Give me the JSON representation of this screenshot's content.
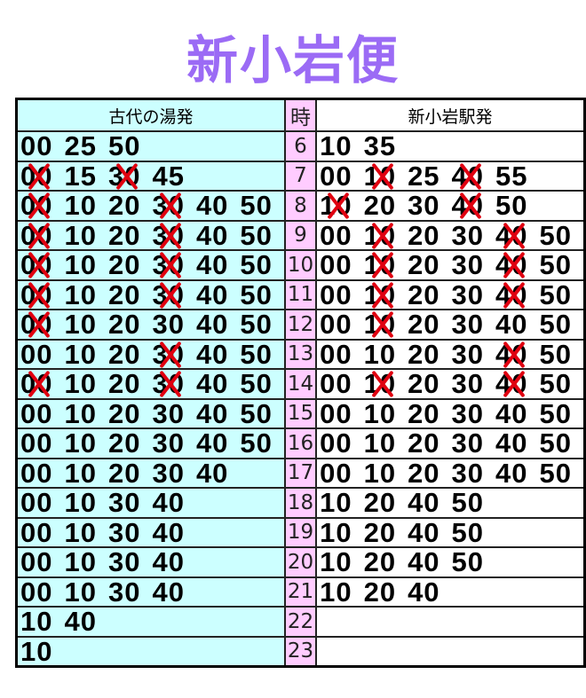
{
  "title": "新小岩便",
  "colors": {
    "title": "#9b6bf5",
    "left_bg": "#ccffff",
    "hour_bg": "#ffccff",
    "cancel_mark": "#e00010"
  },
  "headers": {
    "left": "古代の湯発",
    "hour": "時",
    "right": "新小岩駅発"
  },
  "rows": [
    {
      "hour": "6",
      "left": [
        {
          "t": "00"
        },
        {
          "t": "25"
        },
        {
          "t": "50"
        }
      ],
      "right": [
        {
          "t": "10"
        },
        {
          "t": "35"
        }
      ]
    },
    {
      "hour": "7",
      "left": [
        {
          "t": "00",
          "x": true
        },
        {
          "t": "15"
        },
        {
          "t": "30",
          "x": true
        },
        {
          "t": "45"
        }
      ],
      "right": [
        {
          "t": "00"
        },
        {
          "t": "10",
          "x": true
        },
        {
          "t": "25"
        },
        {
          "t": "40",
          "x": true
        },
        {
          "t": "55"
        }
      ]
    },
    {
      "hour": "8",
      "left": [
        {
          "t": "00",
          "x": true
        },
        {
          "t": "10"
        },
        {
          "t": "20"
        },
        {
          "t": "30",
          "x": true
        },
        {
          "t": "40"
        },
        {
          "t": "50"
        }
      ],
      "right": [
        {
          "t": "10",
          "x": true
        },
        {
          "t": "20"
        },
        {
          "t": "30"
        },
        {
          "t": "40",
          "x": true
        },
        {
          "t": "50"
        }
      ]
    },
    {
      "hour": "9",
      "left": [
        {
          "t": "00",
          "x": true
        },
        {
          "t": "10"
        },
        {
          "t": "20"
        },
        {
          "t": "30",
          "x": true
        },
        {
          "t": "40"
        },
        {
          "t": "50"
        }
      ],
      "right": [
        {
          "t": "00"
        },
        {
          "t": "10",
          "x": true
        },
        {
          "t": "20"
        },
        {
          "t": "30"
        },
        {
          "t": "40",
          "x": true
        },
        {
          "t": "50"
        }
      ]
    },
    {
      "hour": "10",
      "left": [
        {
          "t": "00",
          "x": true
        },
        {
          "t": "10"
        },
        {
          "t": "20"
        },
        {
          "t": "30",
          "x": true
        },
        {
          "t": "40"
        },
        {
          "t": "50"
        }
      ],
      "right": [
        {
          "t": "00"
        },
        {
          "t": "10",
          "x": true
        },
        {
          "t": "20"
        },
        {
          "t": "30"
        },
        {
          "t": "40",
          "x": true
        },
        {
          "t": "50"
        }
      ]
    },
    {
      "hour": "11",
      "left": [
        {
          "t": "00",
          "x": true
        },
        {
          "t": "10"
        },
        {
          "t": "20"
        },
        {
          "t": "30",
          "x": true
        },
        {
          "t": "40"
        },
        {
          "t": "50"
        }
      ],
      "right": [
        {
          "t": "00"
        },
        {
          "t": "10",
          "x": true
        },
        {
          "t": "20"
        },
        {
          "t": "30"
        },
        {
          "t": "40",
          "x": true
        },
        {
          "t": "50"
        }
      ]
    },
    {
      "hour": "12",
      "left": [
        {
          "t": "00",
          "x": true
        },
        {
          "t": "10"
        },
        {
          "t": "20"
        },
        {
          "t": "30"
        },
        {
          "t": "40"
        },
        {
          "t": "50"
        }
      ],
      "right": [
        {
          "t": "00"
        },
        {
          "t": "10",
          "x": true
        },
        {
          "t": "20"
        },
        {
          "t": "30"
        },
        {
          "t": "40"
        },
        {
          "t": "50"
        }
      ]
    },
    {
      "hour": "13",
      "left": [
        {
          "t": "00"
        },
        {
          "t": "10"
        },
        {
          "t": "20"
        },
        {
          "t": "30",
          "x": true
        },
        {
          "t": "40"
        },
        {
          "t": "50"
        }
      ],
      "right": [
        {
          "t": "00"
        },
        {
          "t": "10"
        },
        {
          "t": "20"
        },
        {
          "t": "30"
        },
        {
          "t": "40",
          "x": true
        },
        {
          "t": "50"
        }
      ]
    },
    {
      "hour": "14",
      "left": [
        {
          "t": "00",
          "x": true
        },
        {
          "t": "10"
        },
        {
          "t": "20"
        },
        {
          "t": "30",
          "x": true
        },
        {
          "t": "40"
        },
        {
          "t": "50"
        }
      ],
      "right": [
        {
          "t": "00"
        },
        {
          "t": "10",
          "x": true
        },
        {
          "t": "20"
        },
        {
          "t": "30"
        },
        {
          "t": "40",
          "x": true
        },
        {
          "t": "50"
        }
      ]
    },
    {
      "hour": "15",
      "left": [
        {
          "t": "00"
        },
        {
          "t": "10"
        },
        {
          "t": "20"
        },
        {
          "t": "30"
        },
        {
          "t": "40"
        },
        {
          "t": "50"
        }
      ],
      "right": [
        {
          "t": "00"
        },
        {
          "t": "10"
        },
        {
          "t": "20"
        },
        {
          "t": "30"
        },
        {
          "t": "40"
        },
        {
          "t": "50"
        }
      ]
    },
    {
      "hour": "16",
      "left": [
        {
          "t": "00"
        },
        {
          "t": "10"
        },
        {
          "t": "20"
        },
        {
          "t": "30"
        },
        {
          "t": "40"
        },
        {
          "t": "50"
        }
      ],
      "right": [
        {
          "t": "00"
        },
        {
          "t": "10"
        },
        {
          "t": "20"
        },
        {
          "t": "30"
        },
        {
          "t": "40"
        },
        {
          "t": "50"
        }
      ]
    },
    {
      "hour": "17",
      "left": [
        {
          "t": "00"
        },
        {
          "t": "10"
        },
        {
          "t": "20"
        },
        {
          "t": "30"
        },
        {
          "t": "40"
        }
      ],
      "right": [
        {
          "t": "00"
        },
        {
          "t": "10"
        },
        {
          "t": "20"
        },
        {
          "t": "30"
        },
        {
          "t": "40"
        },
        {
          "t": "50"
        }
      ]
    },
    {
      "hour": "18",
      "left": [
        {
          "t": "00"
        },
        {
          "t": "10"
        },
        {
          "t": "30"
        },
        {
          "t": "40"
        }
      ],
      "right": [
        {
          "t": "10"
        },
        {
          "t": "20"
        },
        {
          "t": "40"
        },
        {
          "t": "50"
        }
      ]
    },
    {
      "hour": "19",
      "left": [
        {
          "t": "00"
        },
        {
          "t": "10"
        },
        {
          "t": "30"
        },
        {
          "t": "40"
        }
      ],
      "right": [
        {
          "t": "10"
        },
        {
          "t": "20"
        },
        {
          "t": "40"
        },
        {
          "t": "50"
        }
      ]
    },
    {
      "hour": "20",
      "left": [
        {
          "t": "00"
        },
        {
          "t": "10"
        },
        {
          "t": "30"
        },
        {
          "t": "40"
        }
      ],
      "right": [
        {
          "t": "10"
        },
        {
          "t": "20"
        },
        {
          "t": "40"
        },
        {
          "t": "50"
        }
      ]
    },
    {
      "hour": "21",
      "left": [
        {
          "t": "00"
        },
        {
          "t": "10"
        },
        {
          "t": "30"
        },
        {
          "t": "40"
        }
      ],
      "right": [
        {
          "t": "10"
        },
        {
          "t": "20"
        },
        {
          "t": "40"
        }
      ]
    },
    {
      "hour": "22",
      "left": [
        {
          "t": "10"
        },
        {
          "t": "40"
        }
      ],
      "right": []
    },
    {
      "hour": "23",
      "left": [
        {
          "t": "10"
        }
      ],
      "right": []
    }
  ]
}
